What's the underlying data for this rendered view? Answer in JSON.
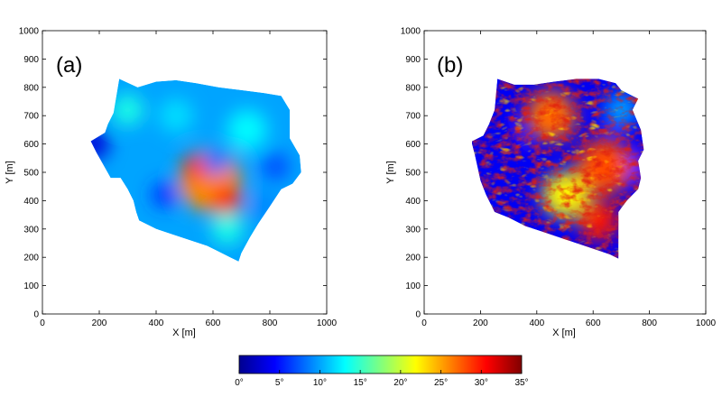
{
  "chart_data": [
    {
      "type": "heatmap",
      "panel_label": "(a)",
      "xlabel": "X [m]",
      "ylabel": "Y [m]",
      "xlim": [
        0,
        1000
      ],
      "ylim": [
        0,
        1000
      ],
      "xticks": [
        0,
        200,
        400,
        600,
        800,
        1000
      ],
      "yticks": [
        0,
        100,
        200,
        300,
        400,
        500,
        600,
        700,
        800,
        900,
        1000
      ],
      "outline": [
        [
          270,
          830
        ],
        [
          335,
          800
        ],
        [
          400,
          820
        ],
        [
          470,
          825
        ],
        [
          540,
          815
        ],
        [
          620,
          800
        ],
        [
          700,
          790
        ],
        [
          780,
          780
        ],
        [
          840,
          770
        ],
        [
          870,
          720
        ],
        [
          870,
          620
        ],
        [
          905,
          560
        ],
        [
          910,
          500
        ],
        [
          880,
          460
        ],
        [
          840,
          440
        ],
        [
          800,
          380
        ],
        [
          760,
          320
        ],
        [
          730,
          270
        ],
        [
          700,
          215
        ],
        [
          690,
          185
        ],
        [
          660,
          200
        ],
        [
          620,
          220
        ],
        [
          580,
          240
        ],
        [
          520,
          260
        ],
        [
          460,
          280
        ],
        [
          400,
          300
        ],
        [
          340,
          330
        ],
        [
          330,
          360
        ],
        [
          320,
          400
        ],
        [
          300,
          440
        ],
        [
          275,
          480
        ],
        [
          240,
          480
        ],
        [
          190,
          570
        ],
        [
          170,
          610
        ],
        [
          220,
          640
        ],
        [
          230,
          670
        ],
        [
          250,
          710
        ],
        [
          270,
          830
        ]
      ],
      "blobs": [
        {
          "x": 590,
          "y": 470,
          "r": 110,
          "value": 26
        },
        {
          "x": 650,
          "y": 400,
          "r": 50,
          "value": 30
        },
        {
          "x": 540,
          "y": 520,
          "r": 45,
          "value": 29
        },
        {
          "x": 610,
          "y": 535,
          "r": 45,
          "value": 8
        },
        {
          "x": 300,
          "y": 720,
          "r": 55,
          "value": 14
        },
        {
          "x": 720,
          "y": 650,
          "r": 70,
          "value": 13
        },
        {
          "x": 430,
          "y": 420,
          "r": 45,
          "value": 6
        },
        {
          "x": 820,
          "y": 520,
          "r": 50,
          "value": 7
        },
        {
          "x": 180,
          "y": 600,
          "r": 55,
          "value": 3
        },
        {
          "x": 470,
          "y": 700,
          "r": 60,
          "value": 12
        },
        {
          "x": 650,
          "y": 300,
          "r": 55,
          "value": 14
        },
        {
          "x": 780,
          "y": 380,
          "r": 55,
          "value": 9
        }
      ]
    },
    {
      "type": "heatmap",
      "panel_label": "(b)",
      "xlabel": "X [m]",
      "ylabel": "Y [m]",
      "xlim": [
        0,
        1000
      ],
      "ylim": [
        0,
        1000
      ],
      "xticks": [
        0,
        200,
        400,
        600,
        800,
        1000
      ],
      "yticks": [
        0,
        100,
        200,
        300,
        400,
        500,
        600,
        700,
        800,
        900,
        1000
      ],
      "outline": [
        [
          260,
          830
        ],
        [
          320,
          810
        ],
        [
          390,
          810
        ],
        [
          460,
          820
        ],
        [
          540,
          830
        ],
        [
          620,
          830
        ],
        [
          680,
          815
        ],
        [
          700,
          790
        ],
        [
          760,
          760
        ],
        [
          740,
          720
        ],
        [
          770,
          650
        ],
        [
          780,
          580
        ],
        [
          760,
          540
        ],
        [
          770,
          480
        ],
        [
          760,
          440
        ],
        [
          720,
          400
        ],
        [
          690,
          360
        ],
        [
          690,
          300
        ],
        [
          690,
          255
        ],
        [
          690,
          195
        ],
        [
          660,
          210
        ],
        [
          600,
          230
        ],
        [
          540,
          250
        ],
        [
          480,
          270
        ],
        [
          420,
          290
        ],
        [
          360,
          310
        ],
        [
          300,
          340
        ],
        [
          250,
          360
        ],
        [
          220,
          420
        ],
        [
          200,
          470
        ],
        [
          180,
          560
        ],
        [
          170,
          600
        ],
        [
          170,
          610
        ],
        [
          210,
          630
        ],
        [
          230,
          670
        ],
        [
          250,
          720
        ],
        [
          260,
          830
        ]
      ],
      "blobs": [
        {
          "x": 450,
          "y": 700,
          "r": 90,
          "value": 27
        },
        {
          "x": 640,
          "y": 520,
          "r": 100,
          "value": 28
        },
        {
          "x": 500,
          "y": 420,
          "r": 80,
          "value": 22
        },
        {
          "x": 620,
          "y": 330,
          "r": 70,
          "value": 30
        },
        {
          "x": 700,
          "y": 720,
          "r": 60,
          "value": 10
        },
        {
          "x": 280,
          "y": 600,
          "r": 70,
          "value": 4
        },
        {
          "x": 780,
          "y": 520,
          "r": 50,
          "value": 5
        }
      ]
    }
  ],
  "colorbar": {
    "colormap": "jet",
    "min": 0,
    "max": 35,
    "tick_values": [
      0,
      5,
      10,
      15,
      20,
      25,
      30,
      35
    ],
    "tick_labels": [
      "0°",
      "5°",
      "10°",
      "15°",
      "20°",
      "25°",
      "30°",
      "35°"
    ]
  }
}
